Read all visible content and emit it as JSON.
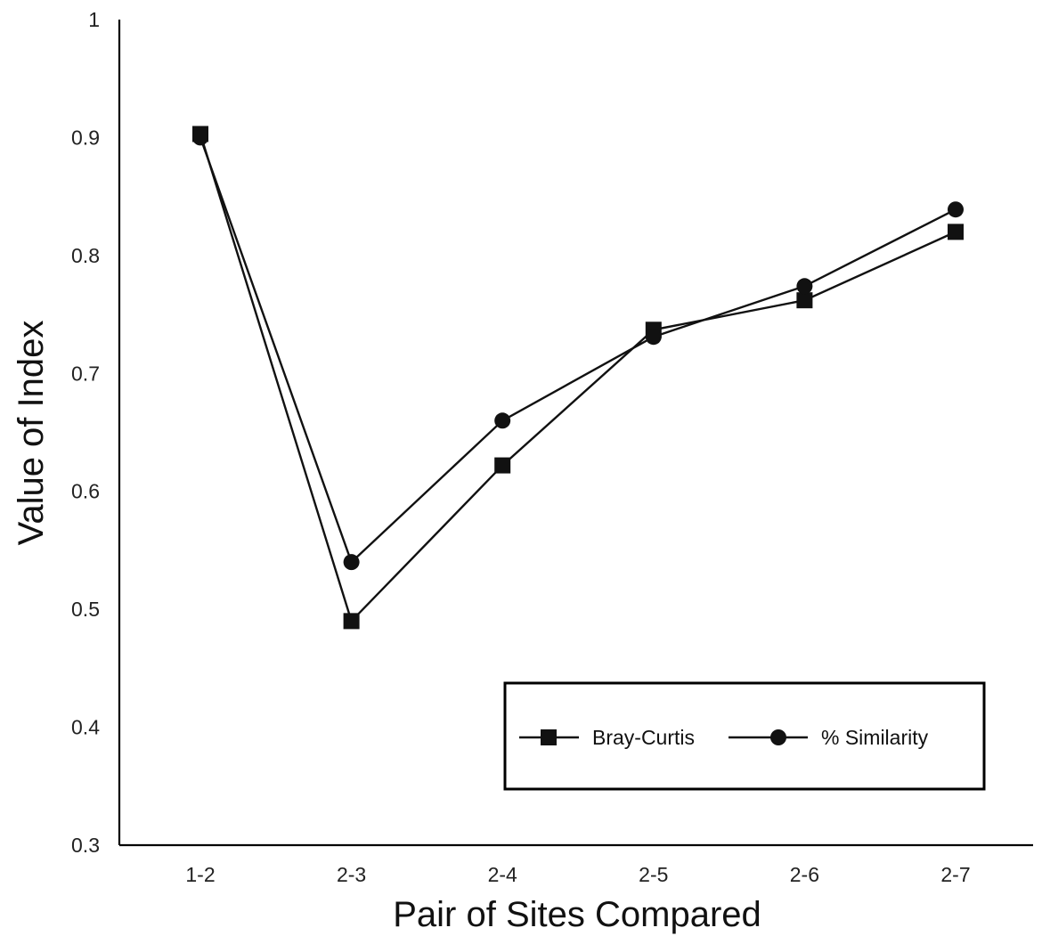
{
  "chart_data": {
    "type": "line",
    "categories": [
      "1-2",
      "2-3",
      "2-4",
      "2-5",
      "2-6",
      "2-7"
    ],
    "series": [
      {
        "name": "Bray-Curtis",
        "marker": "square",
        "values": [
          0.903,
          0.49,
          0.622,
          0.737,
          0.762,
          0.82
        ]
      },
      {
        "name": "% Similarity",
        "marker": "circle",
        "values": [
          0.9,
          0.54,
          0.66,
          0.731,
          0.774,
          0.839
        ]
      }
    ],
    "xlabel": "Pair of Sites Compared",
    "ylabel": "Value of Index",
    "ylim": [
      0.3,
      1
    ],
    "yticks": [
      "0.3",
      "0.4",
      "0.5",
      "0.6",
      "0.7",
      "0.8",
      "0.9",
      "1"
    ],
    "grid": false,
    "legend_position": "bottom-right",
    "colors": {
      "line": "#111111",
      "marker": "#111111",
      "background": "#ffffff"
    }
  }
}
